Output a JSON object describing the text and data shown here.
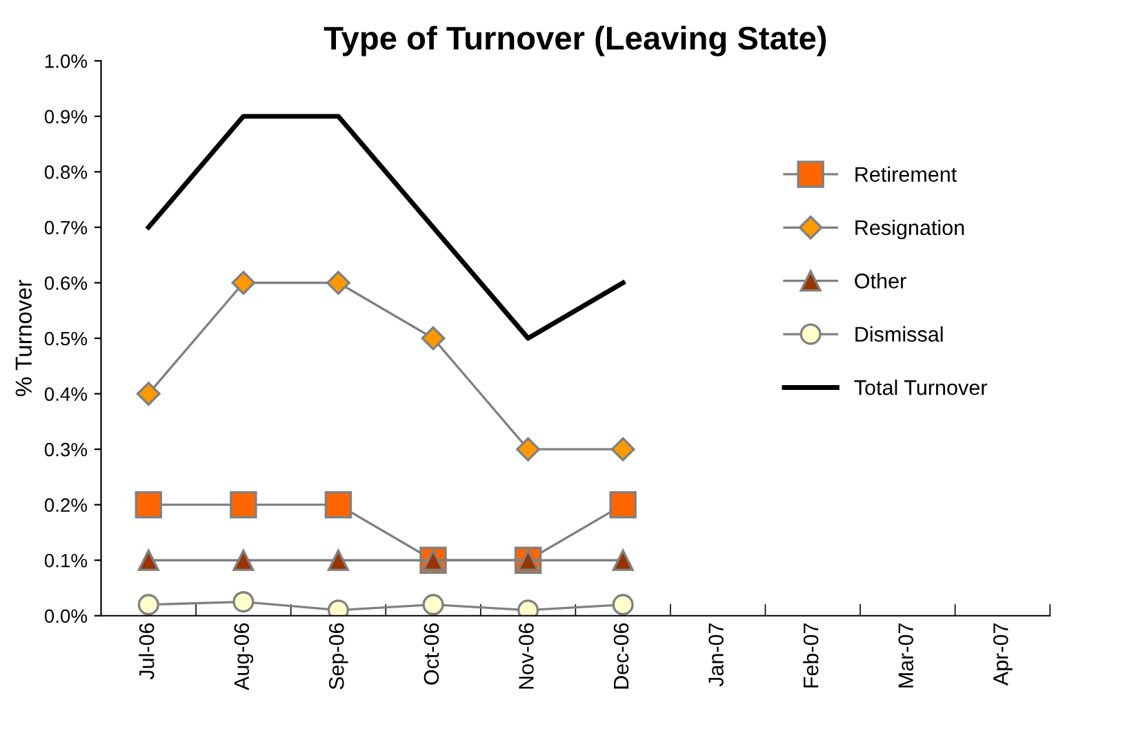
{
  "chart_data": {
    "type": "line",
    "title": "Type of Turnover (Leaving State)",
    "ylabel": "% Turnover",
    "categories": [
      "Jul-06",
      "Aug-06",
      "Sep-06",
      "Oct-06",
      "Nov-06",
      "Dec-06",
      "Jan-07",
      "Feb-07",
      "Mar-07",
      "Apr-07"
    ],
    "series": [
      {
        "name": "Retirement",
        "color": "#ff6600",
        "marker": "square",
        "values": [
          0.2,
          0.2,
          0.2,
          0.1,
          0.1,
          0.2,
          null,
          null,
          null,
          null
        ]
      },
      {
        "name": "Resignation",
        "color": "#ff9900",
        "marker": "diamond",
        "values": [
          0.4,
          0.6,
          0.6,
          0.5,
          0.3,
          0.3,
          null,
          null,
          null,
          null
        ]
      },
      {
        "name": "Other",
        "color": "#993300",
        "marker": "triangle",
        "values": [
          0.1,
          0.1,
          0.1,
          0.1,
          0.1,
          0.1,
          null,
          null,
          null,
          null
        ]
      },
      {
        "name": "Dismissal",
        "color": "#ffffcc",
        "marker": "circle",
        "values": [
          0.02,
          0.025,
          0.01,
          0.02,
          0.01,
          0.02,
          null,
          null,
          null,
          null
        ]
      },
      {
        "name": "Total Turnover",
        "color": "#000000",
        "marker": "none",
        "values": [
          0.7,
          0.9,
          0.9,
          0.7,
          0.5,
          0.6,
          null,
          null,
          null,
          null
        ]
      }
    ],
    "ylim": [
      0,
      1.0
    ],
    "yticks": [
      {
        "value": 0,
        "label": "0.0%"
      },
      {
        "value": 0.1,
        "label": "0.1%"
      },
      {
        "value": 0.2,
        "label": "0.2%"
      },
      {
        "value": 0.3,
        "label": "0.3%"
      },
      {
        "value": 0.4,
        "label": "0.4%"
      },
      {
        "value": 0.5,
        "label": "0.5%"
      },
      {
        "value": 0.6,
        "label": "0.6%"
      },
      {
        "value": 0.7,
        "label": "0.7%"
      },
      {
        "value": 0.8,
        "label": "0.8%"
      },
      {
        "value": 0.9,
        "label": "0.9%"
      },
      {
        "value": 1.0,
        "label": "1.0%"
      }
    ],
    "grid": false,
    "legend": "right"
  }
}
